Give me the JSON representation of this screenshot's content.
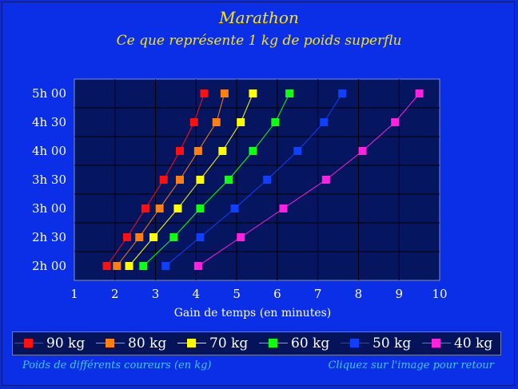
{
  "chart_data": {
    "type": "line",
    "title": "Marathon",
    "subtitle": "Ce que représente 1 kg de poids superflu",
    "xlabel": "Gain de temps (en minutes)",
    "ylabel": "",
    "xlim": [
      1,
      10
    ],
    "x_ticks": [
      "1",
      "2",
      "3",
      "4",
      "5",
      "6",
      "7",
      "8",
      "9",
      "10"
    ],
    "y_categories": [
      "2h 00",
      "2h 30",
      "3h 00",
      "3h 30",
      "4h 00",
      "4h 30",
      "5h 00"
    ],
    "grid": true,
    "legend_position": "bottom",
    "series": [
      {
        "name": "90 kg",
        "color": "#ff1010",
        "x": [
          1.8,
          2.3,
          2.75,
          3.2,
          3.6,
          3.95,
          4.2
        ]
      },
      {
        "name": "80 kg",
        "color": "#ff8010",
        "x": [
          2.05,
          2.6,
          3.1,
          3.6,
          4.05,
          4.5,
          4.7
        ]
      },
      {
        "name": "70 kg",
        "color": "#ffff00",
        "x": [
          2.35,
          2.95,
          3.55,
          4.1,
          4.65,
          5.1,
          5.4
        ]
      },
      {
        "name": "60 kg",
        "color": "#10ff10",
        "x": [
          2.7,
          3.45,
          4.1,
          4.8,
          5.4,
          5.95,
          6.3
        ]
      },
      {
        "name": "50 kg",
        "color": "#1040ff",
        "x": [
          3.25,
          4.1,
          4.95,
          5.75,
          6.5,
          7.15,
          7.6
        ]
      },
      {
        "name": "40 kg",
        "color": "#ff20e0",
        "x": [
          4.05,
          5.1,
          6.15,
          7.2,
          8.1,
          8.9,
          9.5
        ]
      }
    ]
  },
  "footer": {
    "left_text": "Poids de différents coureurs (en kg)",
    "right_text": "Cliquez sur l'image pour retour"
  }
}
